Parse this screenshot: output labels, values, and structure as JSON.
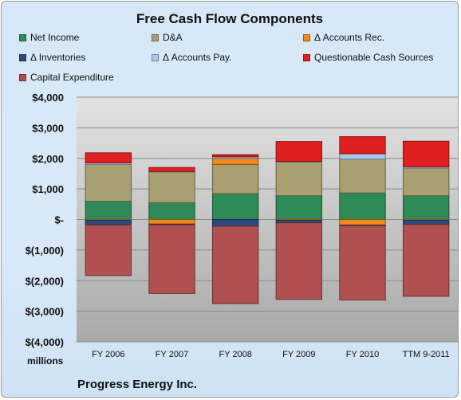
{
  "chart_data": {
    "type": "bar",
    "stacked": true,
    "title": "Free Cash Flow Components",
    "units_label": "millions",
    "footer": "Progress Energy Inc.",
    "categories": [
      "FY 2006",
      "FY 2007",
      "FY 2008",
      "FY 2009",
      "FY 2010",
      "TTM 9-2011"
    ],
    "ylim": [
      -4000,
      4000
    ],
    "y_ticks": [
      4000,
      3000,
      2000,
      1000,
      0,
      -1000,
      -2000,
      -3000,
      -4000
    ],
    "y_tick_labels": [
      "$4,000",
      "$3,000",
      "$2,000",
      "$1,000",
      "$-",
      "$(1,000)",
      "$(2,000)",
      "$(3,000)",
      "$(4,000)"
    ],
    "grid": true,
    "legend_position": "top",
    "series": [
      {
        "name": "Net Income",
        "color": "#2e8b57",
        "values": [
          600,
          550,
          850,
          780,
          870,
          780
        ]
      },
      {
        "name": "D&A",
        "color": "#a8a070",
        "values": [
          1200,
          1000,
          950,
          1100,
          1100,
          900
        ]
      },
      {
        "name": "Δ Accounts Rec.",
        "color": "#f08a1c",
        "values": [
          -30,
          -150,
          200,
          -30,
          -180,
          -30
        ]
      },
      {
        "name": "Δ Inventories",
        "color": "#2a4a7f",
        "values": [
          -150,
          -20,
          -220,
          -80,
          -20,
          -130
        ]
      },
      {
        "name": "Δ Accounts Pay.",
        "color": "#aac8ea",
        "values": [
          50,
          20,
          50,
          20,
          180,
          40
        ]
      },
      {
        "name": "Questionable Cash Sources",
        "color": "#e02020",
        "values": [
          330,
          130,
          70,
          650,
          560,
          840
        ]
      },
      {
        "name": "Capital Expenditure",
        "color": "#b05050",
        "values": [
          -1650,
          -2250,
          -2530,
          -2500,
          -2430,
          -2350
        ]
      }
    ]
  }
}
